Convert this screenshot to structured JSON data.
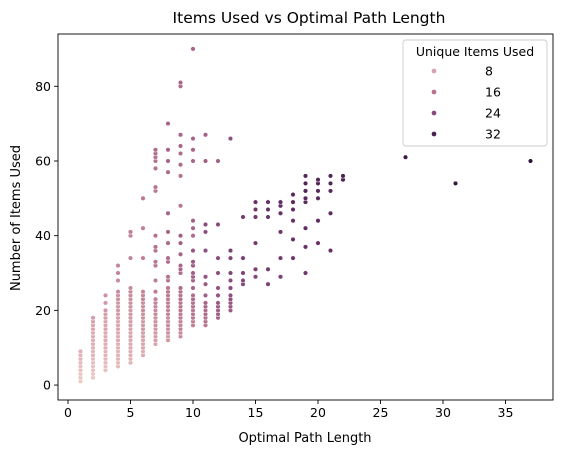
{
  "chart_data": {
    "type": "scatter",
    "title": "Items Used vs Optimal Path Length",
    "xlabel": "Optimal Path Length",
    "ylabel": "Number of Items Used",
    "xlim": [
      -0.8,
      38.8
    ],
    "ylim": [
      -4,
      94
    ],
    "xticks": [
      0,
      5,
      10,
      15,
      20,
      25,
      30,
      35
    ],
    "yticks": [
      0,
      20,
      40,
      60,
      80
    ],
    "grid": false,
    "legend": {
      "title": "Unique Items Used",
      "placement": "top-right",
      "entries": [
        {
          "label": "8",
          "color": "#d5a3ae"
        },
        {
          "label": "16",
          "color": "#b5738f"
        },
        {
          "label": "24",
          "color": "#8a4a7c"
        },
        {
          "label": "32",
          "color": "#4a2050"
        }
      ]
    },
    "color_scale": {
      "min": 1,
      "max": 36,
      "stops": [
        "#eccac6",
        "#d9a6ae",
        "#b9788f",
        "#8f4f7e",
        "#5f2d62",
        "#2d1538"
      ]
    },
    "points": [
      [
        1,
        1,
        1
      ],
      [
        1,
        2,
        2
      ],
      [
        1,
        3,
        2
      ],
      [
        1,
        4,
        3
      ],
      [
        1,
        5,
        3
      ],
      [
        1,
        6,
        4
      ],
      [
        1,
        7,
        5
      ],
      [
        1,
        8,
        5
      ],
      [
        1,
        9,
        6
      ],
      [
        2,
        2,
        2
      ],
      [
        2,
        3,
        2
      ],
      [
        2,
        4,
        3
      ],
      [
        2,
        5,
        3
      ],
      [
        2,
        6,
        4
      ],
      [
        2,
        7,
        4
      ],
      [
        2,
        8,
        5
      ],
      [
        2,
        9,
        5
      ],
      [
        2,
        10,
        6
      ],
      [
        2,
        11,
        6
      ],
      [
        2,
        12,
        6
      ],
      [
        2,
        13,
        7
      ],
      [
        2,
        14,
        7
      ],
      [
        2,
        15,
        8
      ],
      [
        2,
        16,
        8
      ],
      [
        2,
        17,
        9
      ],
      [
        2,
        18,
        9
      ],
      [
        3,
        4,
        3
      ],
      [
        3,
        5,
        3
      ],
      [
        3,
        6,
        4
      ],
      [
        3,
        7,
        4
      ],
      [
        3,
        8,
        5
      ],
      [
        3,
        9,
        5
      ],
      [
        3,
        10,
        6
      ],
      [
        3,
        11,
        6
      ],
      [
        3,
        12,
        7
      ],
      [
        3,
        13,
        7
      ],
      [
        3,
        14,
        7
      ],
      [
        3,
        15,
        8
      ],
      [
        3,
        16,
        8
      ],
      [
        3,
        17,
        8
      ],
      [
        3,
        18,
        9
      ],
      [
        3,
        19,
        9
      ],
      [
        3,
        20,
        10
      ],
      [
        3,
        22,
        10
      ],
      [
        3,
        24,
        11
      ],
      [
        4,
        5,
        4
      ],
      [
        4,
        6,
        4
      ],
      [
        4,
        7,
        5
      ],
      [
        4,
        8,
        5
      ],
      [
        4,
        9,
        5
      ],
      [
        4,
        10,
        6
      ],
      [
        4,
        11,
        6
      ],
      [
        4,
        12,
        7
      ],
      [
        4,
        13,
        7
      ],
      [
        4,
        14,
        7
      ],
      [
        4,
        15,
        8
      ],
      [
        4,
        16,
        8
      ],
      [
        4,
        17,
        8
      ],
      [
        4,
        18,
        9
      ],
      [
        4,
        19,
        9
      ],
      [
        4,
        20,
        10
      ],
      [
        4,
        21,
        10
      ],
      [
        4,
        22,
        10
      ],
      [
        4,
        23,
        11
      ],
      [
        4,
        24,
        11
      ],
      [
        4,
        25,
        12
      ],
      [
        4,
        28,
        12
      ],
      [
        4,
        30,
        13
      ],
      [
        4,
        32,
        13
      ],
      [
        5,
        6,
        5
      ],
      [
        5,
        7,
        5
      ],
      [
        5,
        8,
        6
      ],
      [
        5,
        9,
        6
      ],
      [
        5,
        10,
        7
      ],
      [
        5,
        11,
        7
      ],
      [
        5,
        12,
        7
      ],
      [
        5,
        13,
        8
      ],
      [
        5,
        14,
        8
      ],
      [
        5,
        15,
        8
      ],
      [
        5,
        16,
        9
      ],
      [
        5,
        17,
        9
      ],
      [
        5,
        18,
        10
      ],
      [
        5,
        19,
        10
      ],
      [
        5,
        20,
        10
      ],
      [
        5,
        21,
        11
      ],
      [
        5,
        22,
        11
      ],
      [
        5,
        23,
        11
      ],
      [
        5,
        24,
        12
      ],
      [
        5,
        25,
        12
      ],
      [
        5,
        26,
        12
      ],
      [
        5,
        34,
        13
      ],
      [
        5,
        40,
        13
      ],
      [
        5,
        41,
        14
      ],
      [
        6,
        8,
        7
      ],
      [
        6,
        9,
        7
      ],
      [
        6,
        10,
        8
      ],
      [
        6,
        11,
        8
      ],
      [
        6,
        12,
        8
      ],
      [
        6,
        13,
        9
      ],
      [
        6,
        14,
        9
      ],
      [
        6,
        15,
        10
      ],
      [
        6,
        16,
        10
      ],
      [
        6,
        17,
        10
      ],
      [
        6,
        18,
        11
      ],
      [
        6,
        19,
        11
      ],
      [
        6,
        20,
        12
      ],
      [
        6,
        21,
        12
      ],
      [
        6,
        22,
        12
      ],
      [
        6,
        23,
        13
      ],
      [
        6,
        24,
        13
      ],
      [
        6,
        25,
        13
      ],
      [
        6,
        34,
        14
      ],
      [
        6,
        42,
        14
      ],
      [
        6,
        50,
        15
      ],
      [
        7,
        11,
        8
      ],
      [
        7,
        12,
        9
      ],
      [
        7,
        13,
        9
      ],
      [
        7,
        14,
        10
      ],
      [
        7,
        15,
        10
      ],
      [
        7,
        16,
        11
      ],
      [
        7,
        17,
        11
      ],
      [
        7,
        18,
        11
      ],
      [
        7,
        19,
        12
      ],
      [
        7,
        20,
        12
      ],
      [
        7,
        21,
        13
      ],
      [
        7,
        22,
        13
      ],
      [
        7,
        23,
        13
      ],
      [
        7,
        25,
        14
      ],
      [
        7,
        28,
        14
      ],
      [
        7,
        32,
        15
      ],
      [
        7,
        33,
        15
      ],
      [
        7,
        36,
        16
      ],
      [
        7,
        37,
        16
      ],
      [
        7,
        40,
        16
      ],
      [
        7,
        52,
        15
      ],
      [
        7,
        53,
        15
      ],
      [
        7,
        58,
        16
      ],
      [
        7,
        60,
        16
      ],
      [
        7,
        61,
        16
      ],
      [
        7,
        62,
        17
      ],
      [
        7,
        63,
        17
      ],
      [
        8,
        12,
        10
      ],
      [
        8,
        13,
        10
      ],
      [
        8,
        14,
        11
      ],
      [
        8,
        15,
        11
      ],
      [
        8,
        16,
        12
      ],
      [
        8,
        17,
        12
      ],
      [
        8,
        18,
        12
      ],
      [
        8,
        19,
        13
      ],
      [
        8,
        20,
        13
      ],
      [
        8,
        21,
        14
      ],
      [
        8,
        22,
        14
      ],
      [
        8,
        23,
        14
      ],
      [
        8,
        24,
        15
      ],
      [
        8,
        25,
        15
      ],
      [
        8,
        26,
        15
      ],
      [
        8,
        28,
        16
      ],
      [
        8,
        29,
        16
      ],
      [
        8,
        33,
        17
      ],
      [
        8,
        34,
        17
      ],
      [
        8,
        38,
        17
      ],
      [
        8,
        41,
        18
      ],
      [
        8,
        46,
        18
      ],
      [
        8,
        57,
        17
      ],
      [
        8,
        60,
        18
      ],
      [
        8,
        63,
        18
      ],
      [
        8,
        70,
        18
      ],
      [
        9,
        13,
        12
      ],
      [
        9,
        14,
        12
      ],
      [
        9,
        15,
        13
      ],
      [
        9,
        16,
        13
      ],
      [
        9,
        17,
        13
      ],
      [
        9,
        18,
        14
      ],
      [
        9,
        19,
        14
      ],
      [
        9,
        20,
        15
      ],
      [
        9,
        21,
        15
      ],
      [
        9,
        22,
        15
      ],
      [
        9,
        23,
        16
      ],
      [
        9,
        24,
        16
      ],
      [
        9,
        25,
        16
      ],
      [
        9,
        26,
        17
      ],
      [
        9,
        30,
        17
      ],
      [
        9,
        31,
        18
      ],
      [
        9,
        32,
        18
      ],
      [
        9,
        35,
        18
      ],
      [
        9,
        38,
        19
      ],
      [
        9,
        40,
        19
      ],
      [
        9,
        48,
        15
      ],
      [
        9,
        56,
        16
      ],
      [
        9,
        59,
        17
      ],
      [
        9,
        62,
        17
      ],
      [
        9,
        64,
        18
      ],
      [
        9,
        67,
        18
      ],
      [
        9,
        80,
        17
      ],
      [
        9,
        81,
        18
      ],
      [
        10,
        16,
        14
      ],
      [
        10,
        17,
        14
      ],
      [
        10,
        18,
        15
      ],
      [
        10,
        19,
        15
      ],
      [
        10,
        20,
        15
      ],
      [
        10,
        21,
        16
      ],
      [
        10,
        22,
        16
      ],
      [
        10,
        23,
        17
      ],
      [
        10,
        24,
        17
      ],
      [
        10,
        26,
        18
      ],
      [
        10,
        28,
        18
      ],
      [
        10,
        29,
        19
      ],
      [
        10,
        30,
        19
      ],
      [
        10,
        32,
        20
      ],
      [
        10,
        33,
        20
      ],
      [
        10,
        36,
        21
      ],
      [
        10,
        40,
        17
      ],
      [
        10,
        42,
        18
      ],
      [
        10,
        44,
        19
      ],
      [
        10,
        60,
        18
      ],
      [
        10,
        63,
        18
      ],
      [
        10,
        66,
        18
      ],
      [
        10,
        90,
        18
      ],
      [
        11,
        16,
        15
      ],
      [
        11,
        17,
        16
      ],
      [
        11,
        18,
        16
      ],
      [
        11,
        19,
        17
      ],
      [
        11,
        20,
        17
      ],
      [
        11,
        21,
        18
      ],
      [
        11,
        22,
        18
      ],
      [
        11,
        24,
        19
      ],
      [
        11,
        27,
        20
      ],
      [
        11,
        29,
        21
      ],
      [
        11,
        36,
        22
      ],
      [
        11,
        41,
        22
      ],
      [
        11,
        43,
        23
      ],
      [
        11,
        60,
        19
      ],
      [
        11,
        67,
        19
      ],
      [
        12,
        18,
        18
      ],
      [
        12,
        19,
        19
      ],
      [
        12,
        20,
        19
      ],
      [
        12,
        21,
        20
      ],
      [
        12,
        22,
        20
      ],
      [
        12,
        24,
        21
      ],
      [
        12,
        26,
        21
      ],
      [
        12,
        30,
        22
      ],
      [
        12,
        34,
        22
      ],
      [
        12,
        43,
        23
      ],
      [
        12,
        60,
        19
      ],
      [
        13,
        20,
        20
      ],
      [
        13,
        21,
        21
      ],
      [
        13,
        22,
        21
      ],
      [
        13,
        23,
        22
      ],
      [
        13,
        24,
        22
      ],
      [
        13,
        26,
        23
      ],
      [
        13,
        28,
        23
      ],
      [
        13,
        30,
        24
      ],
      [
        13,
        34,
        24
      ],
      [
        13,
        36,
        25
      ],
      [
        13,
        66,
        22
      ],
      [
        14,
        27,
        23
      ],
      [
        14,
        28,
        24
      ],
      [
        14,
        30,
        24
      ],
      [
        14,
        34,
        25
      ],
      [
        14,
        45,
        26
      ],
      [
        15,
        29,
        24
      ],
      [
        15,
        31,
        25
      ],
      [
        15,
        38,
        26
      ],
      [
        15,
        45,
        27
      ],
      [
        15,
        47,
        27
      ],
      [
        15,
        49,
        28
      ],
      [
        16,
        27,
        25
      ],
      [
        16,
        31,
        26
      ],
      [
        16,
        45,
        27
      ],
      [
        16,
        47,
        28
      ],
      [
        16,
        49,
        28
      ],
      [
        17,
        29,
        25
      ],
      [
        17,
        34,
        26
      ],
      [
        17,
        41,
        27
      ],
      [
        17,
        46,
        28
      ],
      [
        17,
        48,
        29
      ],
      [
        17,
        49,
        29
      ],
      [
        18,
        34,
        27
      ],
      [
        18,
        39,
        28
      ],
      [
        18,
        44,
        28
      ],
      [
        18,
        47,
        29
      ],
      [
        18,
        49,
        30
      ],
      [
        18,
        51,
        30
      ],
      [
        19,
        30,
        27
      ],
      [
        19,
        37,
        28
      ],
      [
        19,
        42,
        29
      ],
      [
        19,
        49,
        30
      ],
      [
        19,
        50,
        30
      ],
      [
        19,
        52,
        31
      ],
      [
        19,
        54,
        31
      ],
      [
        19,
        56,
        31
      ],
      [
        20,
        38,
        28
      ],
      [
        20,
        44,
        29
      ],
      [
        20,
        50,
        30
      ],
      [
        20,
        52,
        30
      ],
      [
        20,
        54,
        31
      ],
      [
        20,
        55,
        31
      ],
      [
        21,
        36,
        28
      ],
      [
        21,
        46,
        29
      ],
      [
        21,
        52,
        30
      ],
      [
        21,
        54,
        31
      ],
      [
        21,
        56,
        31
      ],
      [
        22,
        55,
        32
      ],
      [
        22,
        56,
        32
      ],
      [
        27,
        61,
        34
      ],
      [
        31,
        54,
        35
      ],
      [
        37,
        60,
        36
      ]
    ]
  }
}
